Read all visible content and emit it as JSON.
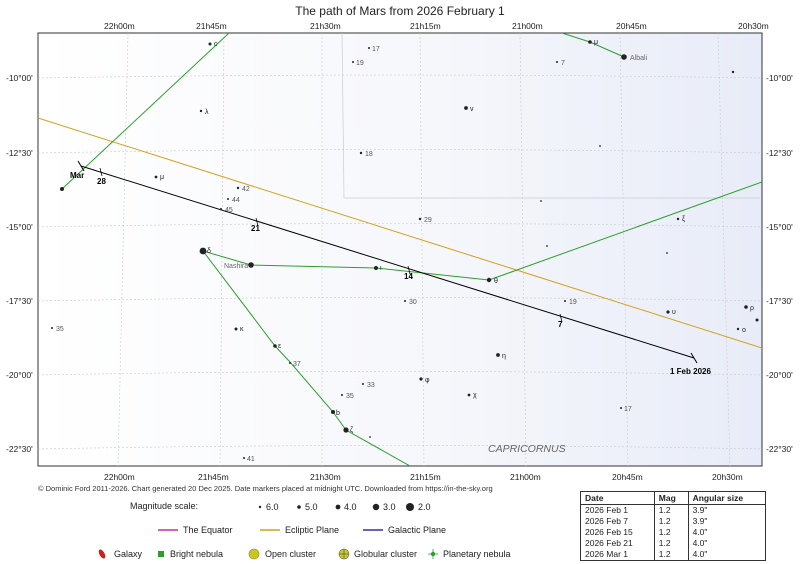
{
  "title": "The path of Mars from 2026 February 1",
  "map": {
    "ra_labels": [
      "22h00m",
      "21h45m",
      "21h30m",
      "21h15m",
      "21h00m",
      "20h45m",
      "20h30m"
    ],
    "dec_labels": [
      "-10°00'",
      "-12°30'",
      "-15°00'",
      "-17°30'",
      "-20°00'",
      "-22°30'"
    ],
    "constellation_label": "CAPRICORNUS",
    "planet_label": "Mar",
    "date_markers": [
      "28",
      "21",
      "14",
      "7",
      "1 Feb 2026"
    ],
    "stars": [
      {
        "name": "Albali",
        "mag": 3.8
      },
      {
        "name": "Nashira",
        "mag": 3.7
      },
      {
        "name": "δ",
        "mag": 2.9
      },
      {
        "name": "ι",
        "mag": 4.3
      },
      {
        "name": "θ",
        "mag": 4.1
      },
      {
        "name": "ζ",
        "mag": 3.7
      },
      {
        "name": "ε",
        "mag": 4.5
      },
      {
        "name": "κ",
        "mag": 4.7
      },
      {
        "name": "μ",
        "mag": 5.1
      },
      {
        "name": "λ",
        "mag": 5.6
      },
      {
        "name": "ν",
        "mag": 4.8
      },
      {
        "name": "η",
        "mag": 4.8
      },
      {
        "name": "φ",
        "mag": 5.2
      },
      {
        "name": "χ",
        "mag": 5.3
      },
      {
        "name": "b",
        "mag": 4.5
      },
      {
        "name": "c",
        "mag": 5.2
      },
      {
        "name": "ξ",
        "mag": 5.9
      },
      {
        "name": "υ",
        "mag": 5.1
      },
      {
        "name": "ρ",
        "mag": 4.8
      },
      {
        "name": "ο",
        "mag": 5.9
      }
    ],
    "numbered_stars": [
      "17",
      "19",
      "7",
      "18",
      "42",
      "44",
      "45",
      "29",
      "30",
      "19",
      "35",
      "37",
      "33",
      "35",
      "41",
      "17"
    ]
  },
  "copyright": "© Dominic Ford 2011-2026. Chart generated 20 Dec 2025. Date markers placed at midnight UTC. Downloaded from https://in-the-sky.org",
  "legend": {
    "magnitude_scale_label": "Magnitude scale:",
    "magnitudes": [
      "6.0",
      "5.0",
      "4.0",
      "3.0",
      "2.0"
    ],
    "equator": "The Equator",
    "ecliptic": "Ecliptic Plane",
    "galactic": "Galactic Plane",
    "galaxy": "Galaxy",
    "bright_nebula": "Bright nebula",
    "open_cluster": "Open cluster",
    "globular_cluster": "Globular cluster",
    "planetary_nebula": "Planetary nebula",
    "colors": {
      "equator": "#b030b0",
      "ecliptic": "#d4a017",
      "galactic": "#3030a0",
      "path": "#000000",
      "constellation": "#2aa02a"
    }
  },
  "table": {
    "headers": [
      "Date",
      "Mag",
      "Angular size"
    ],
    "rows": [
      [
        "2026 Feb 1",
        "1.2",
        "3.9\""
      ],
      [
        "2026 Feb 7",
        "1.2",
        "3.9\""
      ],
      [
        "2026 Feb 15",
        "1.2",
        "4.0\""
      ],
      [
        "2026 Feb 21",
        "1.2",
        "4.0\""
      ],
      [
        "2026 Mar 1",
        "1.2",
        "4.0\""
      ]
    ]
  }
}
